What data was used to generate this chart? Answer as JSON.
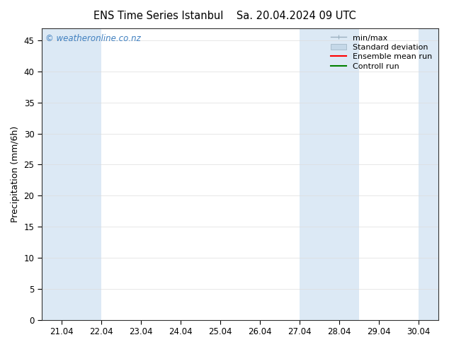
{
  "title1": "ENS Time Series Istanbul",
  "title2": "Sa. 20.04.2024 09 UTC",
  "ylabel": "Precipitation (mm/6h)",
  "ylim": [
    0,
    47
  ],
  "yticks": [
    0,
    5,
    10,
    15,
    20,
    25,
    30,
    35,
    40,
    45
  ],
  "x_labels": [
    "21.04",
    "22.04",
    "23.04",
    "24.04",
    "25.04",
    "26.04",
    "27.04",
    "28.04",
    "29.04",
    "30.04"
  ],
  "x_positions": [
    0,
    1,
    2,
    3,
    4,
    5,
    6,
    7,
    8,
    9
  ],
  "xlim": [
    -0.5,
    9.5
  ],
  "shaded_bands": [
    {
      "x_start": -0.5,
      "x_end": 1.0,
      "color": "#dce9f5"
    },
    {
      "x_start": 6.0,
      "x_end": 7.5,
      "color": "#dce9f5"
    },
    {
      "x_start": 9.0,
      "x_end": 9.5,
      "color": "#dce9f5"
    }
  ],
  "legend_items": [
    {
      "label": "min/max",
      "color": "#9ab0c0",
      "lw": 1.0,
      "style": "minmax"
    },
    {
      "label": "Standard deviation",
      "color": "#c5d8e8",
      "lw": 5,
      "style": "band"
    },
    {
      "label": "Ensemble mean run",
      "color": "red",
      "lw": 1.5,
      "style": "line"
    },
    {
      "label": "Controll run",
      "color": "green",
      "lw": 1.5,
      "style": "line"
    }
  ],
  "watermark": "© weatheronline.co.nz",
  "watermark_color": "#4080c0",
  "bg_color": "#ffffff",
  "axes_bg_color": "#ffffff",
  "title_fontsize": 10.5,
  "ylabel_fontsize": 9,
  "tick_fontsize": 8.5,
  "legend_fontsize": 8
}
